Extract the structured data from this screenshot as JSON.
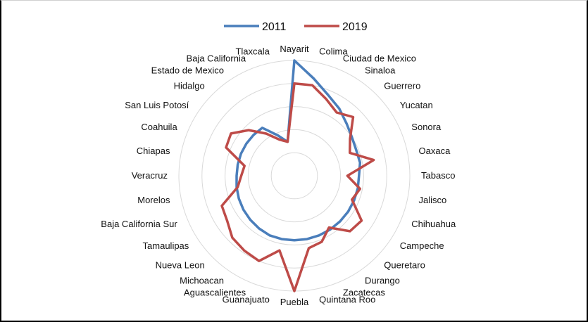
{
  "chart_data": {
    "type": "radar",
    "title": "",
    "categories": [
      "Nayarit",
      "Colima",
      "Ciudad de Mexico",
      "Sinaloa",
      "Guerrero",
      "Yucatan",
      "Sonora",
      "Oaxaca",
      "Tabasco",
      "Jalisco",
      "Chihuahua",
      "Campeche",
      "Queretaro",
      "Durango",
      "Zacatecas",
      "Quintana Roo",
      "Puebla",
      "Guanajuato",
      "Aguascalientes",
      "Michoacan",
      "Nueva Leon",
      "Tamaulipas",
      "Baja California Sur",
      "Morelos",
      "Veracruz",
      "Chiapas",
      "Coahuila",
      "San Luis Potosí",
      "Hidalgo",
      "Estado de Mexico",
      "Baja California",
      "Tlaxcala"
    ],
    "rlim": [
      0,
      5
    ],
    "grid": true,
    "legend_position": "top",
    "series": [
      {
        "name": "2011",
        "color": "#4a7ebb",
        "values": [
          5.0,
          4.3,
          3.8,
          3.5,
          3.2,
          3.0,
          2.9,
          2.9,
          2.8,
          2.8,
          2.8,
          2.8,
          2.8,
          2.8,
          2.8,
          2.8,
          2.8,
          2.8,
          2.8,
          2.75,
          2.7,
          2.65,
          2.6,
          2.55,
          2.5,
          2.5,
          2.5,
          2.5,
          2.5,
          2.5,
          1.9,
          1.5
        ]
      },
      {
        "name": "2019",
        "color": "#be4b48",
        "values": [
          4.0,
          4.0,
          3.6,
          3.3,
          3.6,
          2.9,
          2.6,
          3.5,
          2.3,
          2.9,
          2.7,
          3.5,
          3.4,
          2.7,
          3.1,
          3.2,
          5.0,
          3.3,
          4.0,
          3.9,
          3.8,
          3.5,
          3.4,
          2.5,
          2.3,
          2.2,
          3.2,
          3.3,
          2.8,
          2.2,
          1.7,
          1.5
        ]
      }
    ]
  }
}
